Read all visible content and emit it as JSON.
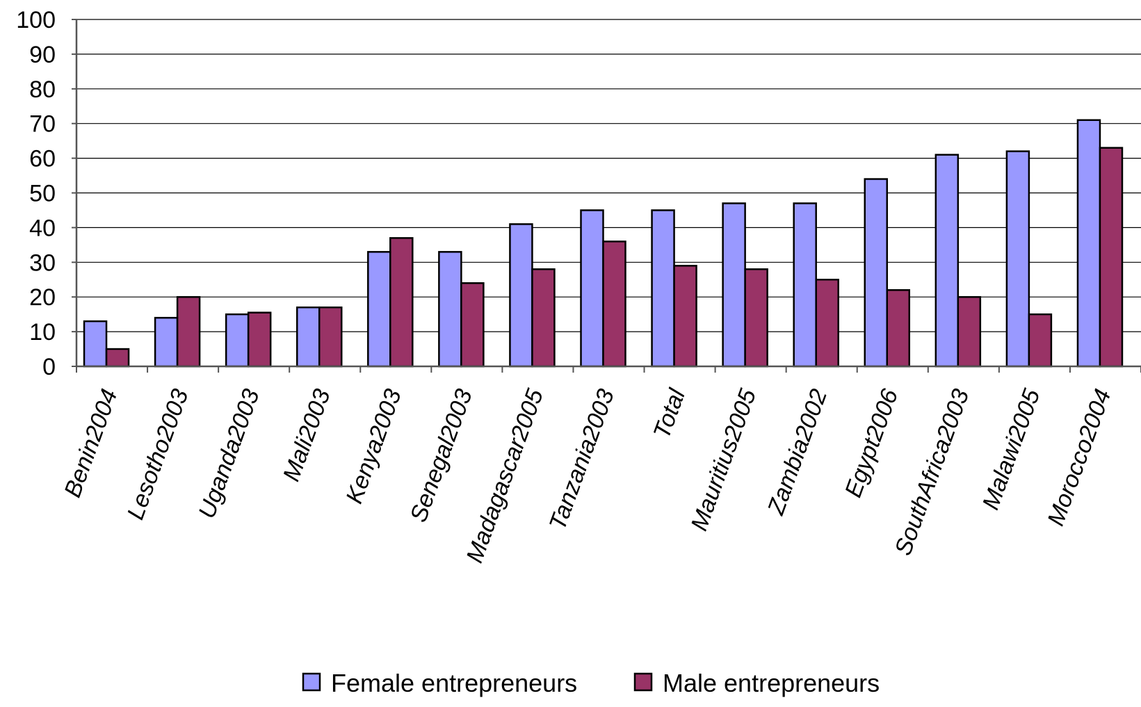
{
  "chart_data": {
    "type": "bar",
    "categories": [
      "Benin2004",
      "Lesotho2003",
      "Uganda2003",
      "Mali2003",
      "Kenya2003",
      "Senegal2003",
      "Madagascar2005",
      "Tanzania2003",
      "Total",
      "Mauritius2005",
      "Zambia2002",
      "Egypt2006",
      "SouthAfrica2003",
      "Malawi2005",
      "Morocco2004"
    ],
    "series": [
      {
        "name": "Female entrepreneurs",
        "color": "#9999FF",
        "values": [
          13,
          14,
          15,
          17,
          33,
          33,
          41,
          45,
          45,
          47,
          47,
          54,
          61,
          62,
          71
        ]
      },
      {
        "name": "Male entrepreneurs",
        "color": "#993366",
        "values": [
          5,
          20,
          15.5,
          17,
          37,
          24,
          28,
          36,
          29,
          28,
          25,
          22,
          20,
          15,
          63
        ]
      }
    ],
    "yticks": [
      "0",
      "10",
      "20",
      "30",
      "40",
      "50",
      "60",
      "70",
      "80",
      "90",
      "100"
    ],
    "ylim": [
      0,
      100
    ],
    "grid": true,
    "legend_position": "bottom",
    "title": "",
    "xlabel": "",
    "ylabel": ""
  }
}
